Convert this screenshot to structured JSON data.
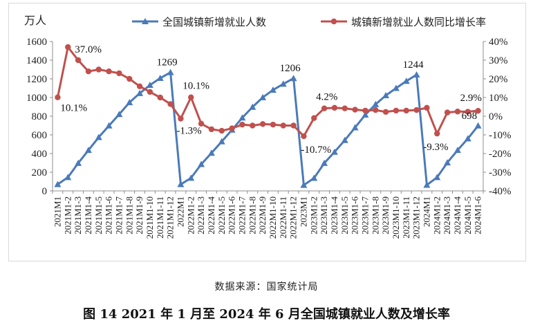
{
  "chart_data": {
    "type": "line",
    "y_unit_label": "万人",
    "categories": [
      "2021M1",
      "2021M1-2",
      "2021M1-3",
      "2021M1-4",
      "2021M1-5",
      "2021M1-6",
      "2021M1-7",
      "2021M1-8",
      "2021M1-9",
      "2021M1-10",
      "2021M1-11",
      "2021M1-12",
      "2022M1",
      "2022M1-2",
      "2022M1-3",
      "2022M1-4",
      "2022M1-5",
      "2022M1-6",
      "2022M1-7",
      "2022M1-8",
      "2022M1-9",
      "2022M1-10",
      "2022M1-11",
      "2022M1-12",
      "2023M1",
      "2023M1-2",
      "2023M1-3",
      "2023M1-4",
      "2023M1-5",
      "2023M1-6",
      "2023M1-7",
      "2023M1-8",
      "2023M1-9",
      "2023M1-10",
      "2023M1-11",
      "2023M1-12",
      "2024M1",
      "2024M1-2",
      "2024M1-3",
      "2024M1-4",
      "2024M1-5",
      "2024M1-6"
    ],
    "series": [
      {
        "name": "全国城镇新增就业人数",
        "axis": "left",
        "color": "#4a7ab9",
        "marker": "triangle",
        "values": [
          70,
          145,
          297,
          436,
          574,
          698,
          820,
          947,
          1045,
          1133,
          1207,
          1269,
          70,
          138,
          285,
          406,
          529,
          654,
          783,
          898,
          1001,
          1081,
          1145,
          1206,
          62,
          137,
          297,
          417,
          543,
          678,
          815,
          927,
          1022,
          1100,
          1176,
          1244,
          63,
          145,
          303,
          436,
          560,
          698
        ]
      },
      {
        "name": "城镇新增就业人数同比增长率",
        "axis": "right",
        "color": "#c0504d",
        "marker": "circle",
        "values": [
          10.1,
          37.0,
          30.0,
          24.0,
          25.0,
          24.0,
          23.0,
          20.0,
          16.0,
          13.0,
          10.0,
          6.5,
          -1.3,
          10.1,
          -4.0,
          -7.0,
          -7.8,
          -6.5,
          -4.5,
          -5.0,
          -4.2,
          -4.5,
          -5.0,
          -5.0,
          -10.7,
          -1.0,
          4.2,
          4.5,
          4.2,
          3.5,
          3.0,
          3.3,
          2.3,
          3.0,
          3.0,
          3.3,
          4.5,
          -9.3,
          2.0,
          2.5,
          2.4,
          2.9
        ]
      }
    ],
    "ylim_left": [
      0,
      1600
    ],
    "yticks_left": [
      "0",
      "200",
      "400",
      "600",
      "800",
      "1000",
      "1200",
      "1400",
      "1600"
    ],
    "ylim_right": [
      -40,
      40
    ],
    "yticks_right": [
      "-40%",
      "-30%",
      "-20%",
      "-10%",
      "0%",
      "10%",
      "20%",
      "30%",
      "40%"
    ],
    "data_labels": [
      {
        "series": 1,
        "index": 0,
        "text": "10.1%"
      },
      {
        "series": 1,
        "index": 1,
        "text": "37.0%"
      },
      {
        "series": 0,
        "index": 11,
        "text": "1269"
      },
      {
        "series": 1,
        "index": 12,
        "text": "-1.3%"
      },
      {
        "series": 1,
        "index": 13,
        "text": "10.1%"
      },
      {
        "series": 0,
        "index": 23,
        "text": "1206"
      },
      {
        "series": 1,
        "index": 24,
        "text": "-10.7%"
      },
      {
        "series": 1,
        "index": 26,
        "text": "4.2%"
      },
      {
        "series": 0,
        "index": 35,
        "text": "1244"
      },
      {
        "series": 1,
        "index": 37,
        "text": "-9.3%"
      },
      {
        "series": 0,
        "index": 41,
        "text": "698"
      },
      {
        "series": 1,
        "index": 41,
        "text": "2.9%"
      }
    ],
    "legend_position": "top",
    "grid": false
  },
  "source_note": "数据来源：国家统计局",
  "caption": "图 14 2021 年 1 月至 2024 年 6 月全国城镇就业人数及增长率"
}
